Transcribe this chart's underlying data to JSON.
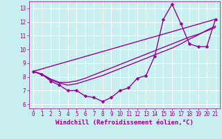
{
  "xlabel": "Windchill (Refroidissement éolien,°C)",
  "bg_color": "#c8f0f0",
  "line_color": "#990099",
  "grid_color": "#ffffff",
  "xlim": [
    -0.5,
    21.5
  ],
  "ylim": [
    5.7,
    13.5
  ],
  "xticks": [
    0,
    1,
    2,
    3,
    4,
    5,
    6,
    7,
    8,
    9,
    10,
    11,
    12,
    13,
    14,
    15,
    16,
    17,
    18,
    19,
    20,
    21
  ],
  "yticks": [
    6,
    7,
    8,
    9,
    10,
    11,
    12,
    13
  ],
  "line1_x": [
    0,
    1,
    2,
    3,
    4,
    5,
    6,
    7,
    8,
    9,
    10,
    11,
    12,
    13,
    14,
    15,
    16,
    17,
    18,
    19,
    20,
    21
  ],
  "line1_y": [
    8.4,
    8.2,
    7.7,
    7.4,
    7.0,
    7.0,
    6.6,
    6.5,
    6.2,
    6.5,
    7.0,
    7.2,
    7.9,
    8.1,
    9.5,
    12.2,
    13.3,
    11.9,
    10.4,
    10.2,
    10.2,
    12.2
  ],
  "line2_x": [
    0,
    21
  ],
  "line2_y": [
    8.4,
    12.2
  ],
  "line3_x": [
    0,
    1,
    2,
    3,
    4,
    5,
    6,
    7,
    8,
    9,
    10,
    11,
    12,
    13,
    14,
    15,
    16,
    17,
    18,
    19,
    20,
    21
  ],
  "line3_y": [
    8.4,
    8.2,
    7.85,
    7.6,
    7.6,
    7.7,
    7.9,
    8.15,
    8.4,
    8.65,
    8.9,
    9.15,
    9.4,
    9.65,
    9.9,
    10.15,
    10.4,
    10.65,
    10.9,
    11.1,
    11.35,
    11.6
  ],
  "line4_x": [
    0,
    1,
    2,
    3,
    4,
    5,
    6,
    7,
    8,
    9,
    10,
    11,
    12,
    13,
    14,
    15,
    16,
    17,
    18,
    19,
    20,
    21
  ],
  "line4_y": [
    8.4,
    8.15,
    7.8,
    7.55,
    7.4,
    7.5,
    7.7,
    7.9,
    8.1,
    8.35,
    8.6,
    8.85,
    9.1,
    9.35,
    9.6,
    9.85,
    10.1,
    10.4,
    10.75,
    11.05,
    11.4,
    11.7
  ],
  "marker_size": 2.5,
  "linewidth": 1.0,
  "tick_fontsize": 5.5,
  "xlabel_fontsize": 6.5
}
